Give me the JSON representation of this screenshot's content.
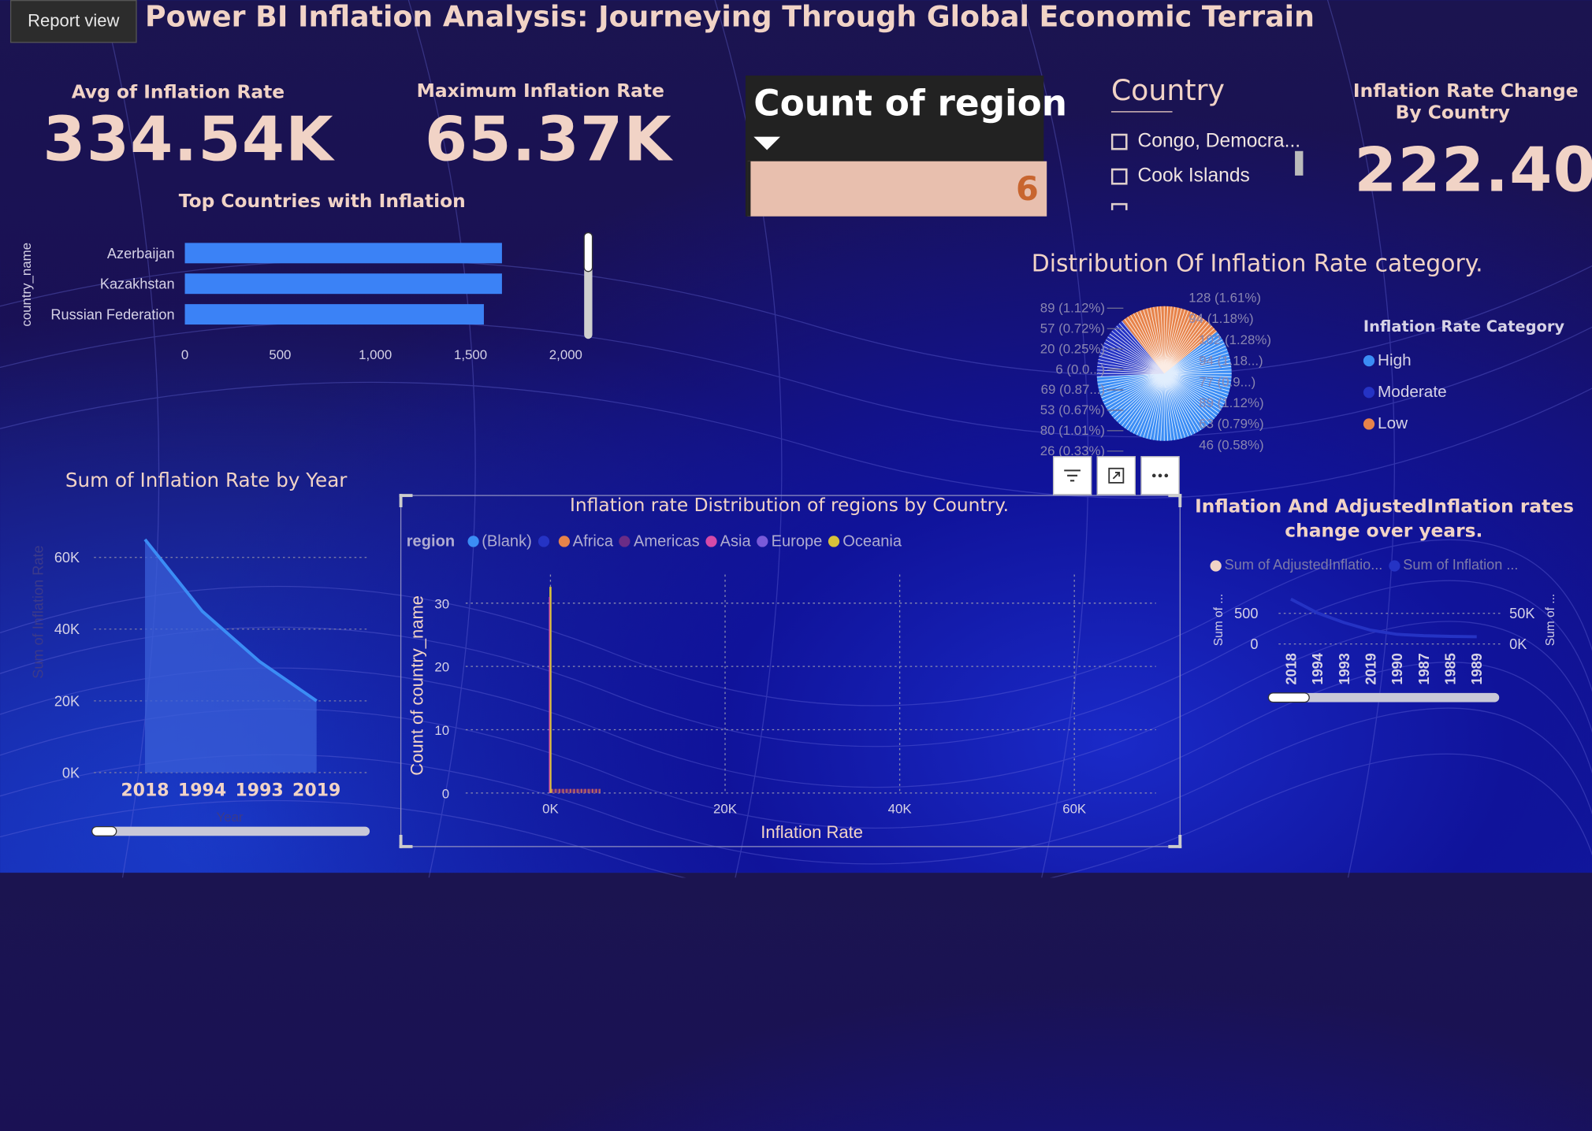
{
  "tab": {
    "label": "Report view"
  },
  "header": {
    "title": "Power BI Inflation Analysis: Journeying Through Global Economic Terrain"
  },
  "kpi_avg": {
    "label": "Avg of Inflation Rate",
    "value": "334.54K"
  },
  "kpi_max": {
    "label": "Maximum Inflation Rate",
    "value": "65.37K"
  },
  "count_card": {
    "label": "Count of region",
    "value": "6"
  },
  "country_slicer": {
    "label": "Country",
    "items": [
      "Congo, Democra...",
      "Cook Islands"
    ]
  },
  "kpi_change": {
    "label_line1": "Inflation Rate Change",
    "label_line2": "By Country",
    "value": "222.40"
  },
  "top_countries": {
    "title": "Top Countries with Inflation",
    "axis_label": "country_name",
    "ticks": [
      "0",
      "500",
      "1,000",
      "1,500",
      "2,000"
    ]
  },
  "pie": {
    "title": "Distribution Of Inflation Rate category.",
    "left_labels": [
      "89 (1.12%)",
      "57 (0.72%)",
      "20 (0.25%)",
      "6 (0.0...)",
      "69 (0.87...)",
      "53 (0.67%)",
      "80 (1.01%)",
      "26 (0.33%)"
    ],
    "right_labels": [
      "128 (1.61%)",
      "94 (1.18%)",
      "102 (1.28%)",
      "94 (1.18...)",
      "77 (0.9...)",
      "89 (1.12%)",
      "63 (0.79%)",
      "46 (0.58%)"
    ],
    "legend_title": "Inflation Rate Category",
    "legend": [
      {
        "name": "High",
        "color": "#3b8df5"
      },
      {
        "name": "Moderate",
        "color": "#2533c4"
      },
      {
        "name": "Low",
        "color": "#e7834a"
      }
    ]
  },
  "area_chart": {
    "title": "Sum of Inflation Rate by Year",
    "y_ticks": [
      "60K",
      "40K",
      "20K",
      "0K"
    ],
    "y_label": "Sum of Inflation Rate",
    "x_label": "Year"
  },
  "scatter": {
    "title": "Inflation rate Distribution of regions by Country.",
    "legend_title": "region",
    "legend": [
      {
        "name": "(Blank)",
        "color": "#3b8df5"
      },
      {
        "name": "",
        "color": "#2533c4"
      },
      {
        "name": "Africa",
        "color": "#e7834a"
      },
      {
        "name": "Americas",
        "color": "#6b2c86"
      },
      {
        "name": "Asia",
        "color": "#d64aa8"
      },
      {
        "name": "Europe",
        "color": "#7a5ad9"
      },
      {
        "name": "Oceania",
        "color": "#d8c23a"
      }
    ],
    "y_ticks": [
      "30",
      "20",
      "10",
      "0"
    ],
    "x_ticks": [
      "0K",
      "20K",
      "40K",
      "60K"
    ],
    "y_label": "Count of country_name",
    "x_label": "Inflation Rate"
  },
  "dual_chart": {
    "title_line1": "Inflation And AdjustedInflation rates",
    "title_line2": "change over years.",
    "legend": [
      {
        "name": "Sum of AdjustedInflatio...",
        "color": "#f1d3c6"
      },
      {
        "name": "Sum of Inflation ...",
        "color": "#2533c4"
      }
    ],
    "left_ticks": [
      "500",
      "0"
    ],
    "right_ticks": [
      "50K",
      "0K"
    ],
    "left_label": "Sum of ...",
    "right_label": "Sum of ...",
    "x_ticks": [
      "2018",
      "1994",
      "1993",
      "2019",
      "1990",
      "1987",
      "1985",
      "1989"
    ]
  },
  "toolbar": {
    "filter_icon": "filter-icon",
    "focus_icon": "focus-mode-icon",
    "more_icon": "more-options-icon"
  },
  "chart_data": [
    {
      "type": "bar",
      "title": "Top Countries with Inflation",
      "ylabel": "country_name",
      "categories": [
        "Azerbaijan",
        "Kazakhstan",
        "Russian Federation"
      ],
      "values": [
        1665,
        1665,
        1570
      ],
      "xlim": [
        0,
        2000
      ]
    },
    {
      "type": "area",
      "title": "Sum of Inflation Rate by Year",
      "xlabel": "Year",
      "ylabel": "Sum of Inflation Rate",
      "categories": [
        "2018",
        "1994",
        "1993",
        "2019"
      ],
      "values": [
        65000,
        45000,
        31000,
        20000
      ],
      "ylim": [
        0,
        70000
      ]
    },
    {
      "type": "pie",
      "title": "Distribution Of Inflation Rate category.",
      "series": [
        {
          "name": "High",
          "value": 60
        },
        {
          "name": "Moderate",
          "value": 15
        },
        {
          "name": "Low",
          "value": 25
        }
      ]
    },
    {
      "type": "line",
      "title": "Inflation And AdjustedInflation rates change over years.",
      "categories": [
        "2018",
        "1994",
        "1993",
        "2019",
        "1990",
        "1987",
        "1985",
        "1989"
      ],
      "series": [
        {
          "name": "Sum of AdjustedInflatio...",
          "values": [
            0,
            0,
            0,
            0,
            0,
            0,
            0,
            0
          ]
        },
        {
          "name": "Sum of Inflation ...",
          "values": [
            65000,
            45000,
            31000,
            20000,
            14000,
            12000,
            11000,
            10500
          ]
        }
      ]
    }
  ]
}
